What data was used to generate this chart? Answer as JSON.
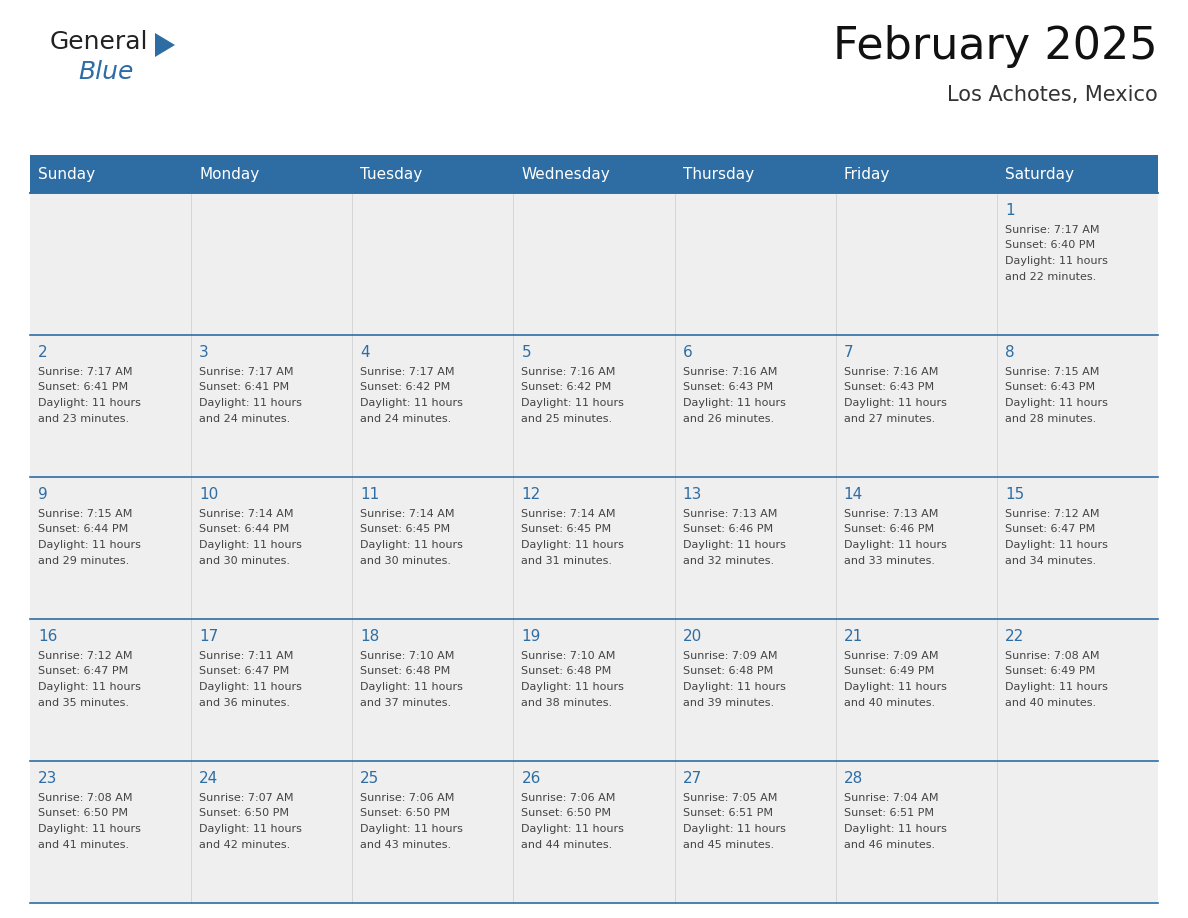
{
  "title": "February 2025",
  "subtitle": "Los Achotes, Mexico",
  "header_color": "#2E6DA4",
  "header_text_color": "#FFFFFF",
  "day_names": [
    "Sunday",
    "Monday",
    "Tuesday",
    "Wednesday",
    "Thursday",
    "Friday",
    "Saturday"
  ],
  "background_color": "#FFFFFF",
  "cell_bg_even": "#EFEFEF",
  "cell_bg_odd": "#F8F8F8",
  "border_color": "#2E6DA4",
  "day_number_color": "#2E6DA4",
  "info_text_color": "#444444",
  "title_fontsize": 32,
  "subtitle_fontsize": 15,
  "header_fontsize": 11,
  "day_num_fontsize": 11,
  "info_fontsize": 8.0,
  "logo_general_color": "#222222",
  "logo_blue_color": "#2E6DA4",
  "logo_triangle_color": "#2E6DA4",
  "days": [
    {
      "day": 1,
      "col": 6,
      "row": 0,
      "sunrise": "7:17 AM",
      "sunset": "6:40 PM",
      "daylight": "11 hours and 22 minutes"
    },
    {
      "day": 2,
      "col": 0,
      "row": 1,
      "sunrise": "7:17 AM",
      "sunset": "6:41 PM",
      "daylight": "11 hours and 23 minutes"
    },
    {
      "day": 3,
      "col": 1,
      "row": 1,
      "sunrise": "7:17 AM",
      "sunset": "6:41 PM",
      "daylight": "11 hours and 24 minutes"
    },
    {
      "day": 4,
      "col": 2,
      "row": 1,
      "sunrise": "7:17 AM",
      "sunset": "6:42 PM",
      "daylight": "11 hours and 24 minutes"
    },
    {
      "day": 5,
      "col": 3,
      "row": 1,
      "sunrise": "7:16 AM",
      "sunset": "6:42 PM",
      "daylight": "11 hours and 25 minutes"
    },
    {
      "day": 6,
      "col": 4,
      "row": 1,
      "sunrise": "7:16 AM",
      "sunset": "6:43 PM",
      "daylight": "11 hours and 26 minutes"
    },
    {
      "day": 7,
      "col": 5,
      "row": 1,
      "sunrise": "7:16 AM",
      "sunset": "6:43 PM",
      "daylight": "11 hours and 27 minutes"
    },
    {
      "day": 8,
      "col": 6,
      "row": 1,
      "sunrise": "7:15 AM",
      "sunset": "6:43 PM",
      "daylight": "11 hours and 28 minutes"
    },
    {
      "day": 9,
      "col": 0,
      "row": 2,
      "sunrise": "7:15 AM",
      "sunset": "6:44 PM",
      "daylight": "11 hours and 29 minutes"
    },
    {
      "day": 10,
      "col": 1,
      "row": 2,
      "sunrise": "7:14 AM",
      "sunset": "6:44 PM",
      "daylight": "11 hours and 30 minutes"
    },
    {
      "day": 11,
      "col": 2,
      "row": 2,
      "sunrise": "7:14 AM",
      "sunset": "6:45 PM",
      "daylight": "11 hours and 30 minutes"
    },
    {
      "day": 12,
      "col": 3,
      "row": 2,
      "sunrise": "7:14 AM",
      "sunset": "6:45 PM",
      "daylight": "11 hours and 31 minutes"
    },
    {
      "day": 13,
      "col": 4,
      "row": 2,
      "sunrise": "7:13 AM",
      "sunset": "6:46 PM",
      "daylight": "11 hours and 32 minutes"
    },
    {
      "day": 14,
      "col": 5,
      "row": 2,
      "sunrise": "7:13 AM",
      "sunset": "6:46 PM",
      "daylight": "11 hours and 33 minutes"
    },
    {
      "day": 15,
      "col": 6,
      "row": 2,
      "sunrise": "7:12 AM",
      "sunset": "6:47 PM",
      "daylight": "11 hours and 34 minutes"
    },
    {
      "day": 16,
      "col": 0,
      "row": 3,
      "sunrise": "7:12 AM",
      "sunset": "6:47 PM",
      "daylight": "11 hours and 35 minutes"
    },
    {
      "day": 17,
      "col": 1,
      "row": 3,
      "sunrise": "7:11 AM",
      "sunset": "6:47 PM",
      "daylight": "11 hours and 36 minutes"
    },
    {
      "day": 18,
      "col": 2,
      "row": 3,
      "sunrise": "7:10 AM",
      "sunset": "6:48 PM",
      "daylight": "11 hours and 37 minutes"
    },
    {
      "day": 19,
      "col": 3,
      "row": 3,
      "sunrise": "7:10 AM",
      "sunset": "6:48 PM",
      "daylight": "11 hours and 38 minutes"
    },
    {
      "day": 20,
      "col": 4,
      "row": 3,
      "sunrise": "7:09 AM",
      "sunset": "6:48 PM",
      "daylight": "11 hours and 39 minutes"
    },
    {
      "day": 21,
      "col": 5,
      "row": 3,
      "sunrise": "7:09 AM",
      "sunset": "6:49 PM",
      "daylight": "11 hours and 40 minutes"
    },
    {
      "day": 22,
      "col": 6,
      "row": 3,
      "sunrise": "7:08 AM",
      "sunset": "6:49 PM",
      "daylight": "11 hours and 40 minutes"
    },
    {
      "day": 23,
      "col": 0,
      "row": 4,
      "sunrise": "7:08 AM",
      "sunset": "6:50 PM",
      "daylight": "11 hours and 41 minutes"
    },
    {
      "day": 24,
      "col": 1,
      "row": 4,
      "sunrise": "7:07 AM",
      "sunset": "6:50 PM",
      "daylight": "11 hours and 42 minutes"
    },
    {
      "day": 25,
      "col": 2,
      "row": 4,
      "sunrise": "7:06 AM",
      "sunset": "6:50 PM",
      "daylight": "11 hours and 43 minutes"
    },
    {
      "day": 26,
      "col": 3,
      "row": 4,
      "sunrise": "7:06 AM",
      "sunset": "6:50 PM",
      "daylight": "11 hours and 44 minutes"
    },
    {
      "day": 27,
      "col": 4,
      "row": 4,
      "sunrise": "7:05 AM",
      "sunset": "6:51 PM",
      "daylight": "11 hours and 45 minutes"
    },
    {
      "day": 28,
      "col": 5,
      "row": 4,
      "sunrise": "7:04 AM",
      "sunset": "6:51 PM",
      "daylight": "11 hours and 46 minutes"
    }
  ]
}
